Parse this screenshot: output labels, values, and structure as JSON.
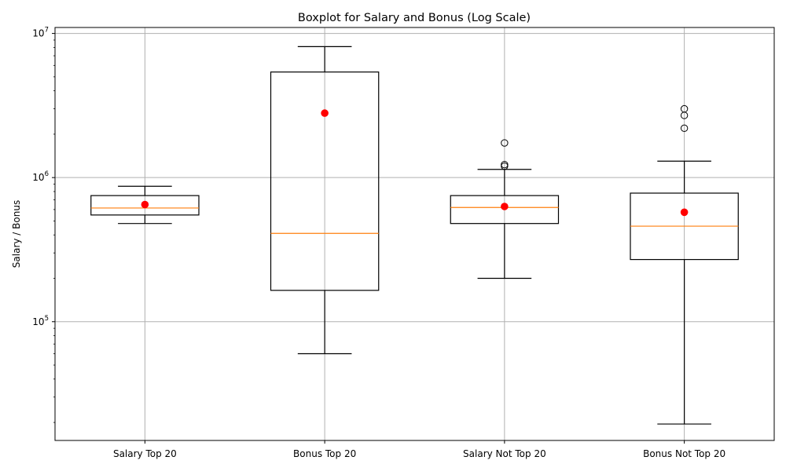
{
  "chart_data": {
    "type": "boxplot",
    "title": "Boxplot for Salary and Bonus (Log Scale)",
    "xlabel": "",
    "ylabel": "Salary / Bonus",
    "yscale": "log",
    "ylim": [
      15000,
      11000000
    ],
    "grid": true,
    "yticks": [
      {
        "value": 100000,
        "base": "10",
        "exp": "5"
      },
      {
        "value": 1000000,
        "base": "10",
        "exp": "6"
      },
      {
        "value": 10000000,
        "base": "10",
        "exp": "7"
      }
    ],
    "categories": [
      "Salary Top 20",
      "Bonus Top 20",
      "Salary Not Top 20",
      "Bonus Not Top 20"
    ],
    "boxes": [
      {
        "whisker_low": 480000,
        "q1": 550000,
        "median": 615000,
        "q3": 750000,
        "whisker_high": 870000,
        "mean": 650000,
        "outliers": []
      },
      {
        "whisker_low": 60000,
        "q1": 165000,
        "median": 410000,
        "q3": 5400000,
        "whisker_high": 8100000,
        "mean": 2800000,
        "outliers": []
      },
      {
        "whisker_low": 200000,
        "q1": 480000,
        "median": 620000,
        "q3": 750000,
        "whisker_high": 1140000,
        "mean": 630000,
        "outliers": [
          1200000,
          1230000,
          1740000
        ]
      },
      {
        "whisker_low": 19500,
        "q1": 270000,
        "median": 460000,
        "q3": 780000,
        "whisker_high": 1300000,
        "mean": 575000,
        "outliers": [
          2200000,
          2700000,
          3000000
        ]
      }
    ],
    "colors": {
      "box": "#000000",
      "median": "#ff7f0e",
      "mean": "#ff0000",
      "grid": "#b0b0b0"
    }
  }
}
